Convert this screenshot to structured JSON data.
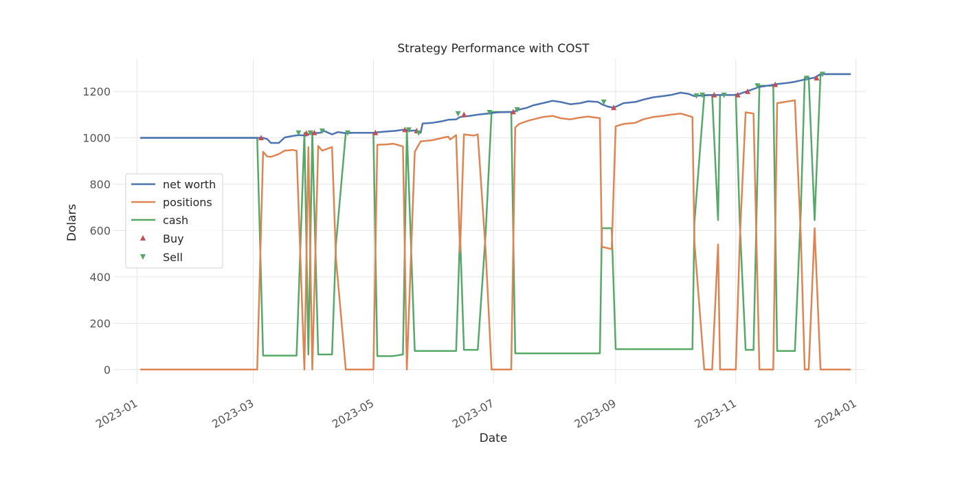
{
  "chart_data": {
    "type": "line",
    "title": "Strategy Performance with COST",
    "xlabel": "Date",
    "ylabel": "Dolars",
    "xlim": [
      "2022-12-20",
      "2024-01-06"
    ],
    "ylim": [
      -60,
      1340
    ],
    "x_ticks": [
      "2023-01-01",
      "2023-03-01",
      "2023-05-01",
      "2023-07-01",
      "2023-09-01",
      "2023-11-01",
      "2024-01-01"
    ],
    "x_tick_labels": [
      "2023-01",
      "2023-03",
      "2023-05",
      "2023-07",
      "2023-09",
      "2023-11",
      "2024-01"
    ],
    "y_ticks": [
      0,
      200,
      400,
      600,
      800,
      1000,
      1200
    ],
    "y_tick_labels": [
      "0",
      "200",
      "400",
      "600",
      "800",
      "1000",
      "1200"
    ],
    "grid": true,
    "legend_position": "center-left",
    "colors": {
      "net_worth": "#4c72b0",
      "positions": "#dd8452",
      "cash": "#55a868",
      "buy": "#c44e52",
      "sell": "#55a868",
      "grid": "#e5e5e5",
      "text": "#262626",
      "tick_text": "#555555"
    },
    "series": [
      {
        "name": "net worth",
        "points": [
          [
            "2023-01-03",
            1000
          ],
          [
            "2023-03-03",
            1000
          ],
          [
            "2023-03-06",
            1000
          ],
          [
            "2023-03-08",
            995
          ],
          [
            "2023-03-10",
            978
          ],
          [
            "2023-03-14",
            978
          ],
          [
            "2023-03-17",
            1002
          ],
          [
            "2023-03-21",
            1008
          ],
          [
            "2023-03-24",
            1012
          ],
          [
            "2023-03-28",
            1010
          ],
          [
            "2023-03-30",
            1020
          ],
          [
            "2023-04-04",
            1022
          ],
          [
            "2023-04-06",
            1030
          ],
          [
            "2023-04-10",
            1015
          ],
          [
            "2023-04-13",
            1025
          ],
          [
            "2023-04-17",
            1020
          ],
          [
            "2023-04-21",
            1022
          ],
          [
            "2023-05-01",
            1022
          ],
          [
            "2023-05-04",
            1025
          ],
          [
            "2023-05-08",
            1028
          ],
          [
            "2023-05-12",
            1030
          ],
          [
            "2023-05-16",
            1035
          ],
          [
            "2023-05-19",
            1030
          ],
          [
            "2023-05-23",
            1032
          ],
          [
            "2023-05-25",
            1022
          ],
          [
            "2023-05-26",
            1062
          ],
          [
            "2023-05-31",
            1065
          ],
          [
            "2023-06-05",
            1072
          ],
          [
            "2023-06-08",
            1078
          ],
          [
            "2023-06-12",
            1080
          ],
          [
            "2023-06-14",
            1090
          ],
          [
            "2023-06-19",
            1095
          ],
          [
            "2023-06-23",
            1100
          ],
          [
            "2023-06-28",
            1105
          ],
          [
            "2023-07-03",
            1110
          ],
          [
            "2023-07-11",
            1112
          ],
          [
            "2023-07-14",
            1122
          ],
          [
            "2023-07-18",
            1130
          ],
          [
            "2023-07-21",
            1140
          ],
          [
            "2023-07-26",
            1150
          ],
          [
            "2023-07-31",
            1160
          ],
          [
            "2023-08-04",
            1155
          ],
          [
            "2023-08-09",
            1145
          ],
          [
            "2023-08-14",
            1150
          ],
          [
            "2023-08-18",
            1158
          ],
          [
            "2023-08-23",
            1155
          ],
          [
            "2023-08-25",
            1145
          ],
          [
            "2023-08-28",
            1135
          ],
          [
            "2023-08-31",
            1130
          ],
          [
            "2023-09-05",
            1150
          ],
          [
            "2023-09-11",
            1155
          ],
          [
            "2023-09-15",
            1165
          ],
          [
            "2023-09-20",
            1175
          ],
          [
            "2023-09-25",
            1180
          ],
          [
            "2023-09-29",
            1185
          ],
          [
            "2023-10-04",
            1195
          ],
          [
            "2023-10-08",
            1190
          ],
          [
            "2023-10-11",
            1180
          ],
          [
            "2023-10-13",
            1182
          ],
          [
            "2023-10-20",
            1185
          ],
          [
            "2023-10-31",
            1185
          ],
          [
            "2023-11-03",
            1190
          ],
          [
            "2023-11-08",
            1205
          ],
          [
            "2023-11-13",
            1220
          ],
          [
            "2023-11-17",
            1225
          ],
          [
            "2023-11-22",
            1232
          ],
          [
            "2023-11-28",
            1238
          ],
          [
            "2023-12-01",
            1242
          ],
          [
            "2023-12-06",
            1252
          ],
          [
            "2023-12-11",
            1260
          ],
          [
            "2023-12-14",
            1275
          ],
          [
            "2023-12-29",
            1275
          ]
        ]
      },
      {
        "name": "positions",
        "points": [
          [
            "2023-01-03",
            0
          ],
          [
            "2023-03-03",
            0
          ],
          [
            "2023-03-06",
            940
          ],
          [
            "2023-03-08",
            920
          ],
          [
            "2023-03-10",
            918
          ],
          [
            "2023-03-14",
            930
          ],
          [
            "2023-03-17",
            945
          ],
          [
            "2023-03-21",
            948
          ],
          [
            "2023-03-23",
            945
          ],
          [
            "2023-03-27",
            0
          ],
          [
            "2023-03-29",
            960
          ],
          [
            "2023-03-31",
            0
          ],
          [
            "2023-04-03",
            965
          ],
          [
            "2023-04-05",
            945
          ],
          [
            "2023-04-10",
            960
          ],
          [
            "2023-04-12",
            480
          ],
          [
            "2023-04-17",
            0
          ],
          [
            "2023-05-01",
            0
          ],
          [
            "2023-05-03",
            970
          ],
          [
            "2023-05-08",
            972
          ],
          [
            "2023-05-11",
            975
          ],
          [
            "2023-05-16",
            963
          ],
          [
            "2023-05-18",
            0
          ],
          [
            "2023-05-22",
            940
          ],
          [
            "2023-05-25",
            985
          ],
          [
            "2023-05-31",
            990
          ],
          [
            "2023-06-05",
            1000
          ],
          [
            "2023-06-08",
            1005
          ],
          [
            "2023-06-09",
            993
          ],
          [
            "2023-06-12",
            1012
          ],
          [
            "2023-06-14",
            508
          ],
          [
            "2023-06-16",
            1015
          ],
          [
            "2023-06-21",
            1010
          ],
          [
            "2023-06-23",
            1015
          ],
          [
            "2023-06-27",
            510
          ],
          [
            "2023-06-30",
            0
          ],
          [
            "2023-07-10",
            0
          ],
          [
            "2023-07-12",
            1045
          ],
          [
            "2023-07-14",
            1060
          ],
          [
            "2023-07-19",
            1075
          ],
          [
            "2023-07-26",
            1090
          ],
          [
            "2023-07-31",
            1095
          ],
          [
            "2023-08-04",
            1085
          ],
          [
            "2023-08-09",
            1080
          ],
          [
            "2023-08-14",
            1088
          ],
          [
            "2023-08-18",
            1092
          ],
          [
            "2023-08-24",
            1085
          ],
          [
            "2023-08-25",
            530
          ],
          [
            "2023-08-30",
            520
          ],
          [
            "2023-09-01",
            1050
          ],
          [
            "2023-09-05",
            1060
          ],
          [
            "2023-09-11",
            1065
          ],
          [
            "2023-09-15",
            1080
          ],
          [
            "2023-09-20",
            1090
          ],
          [
            "2023-09-25",
            1095
          ],
          [
            "2023-09-29",
            1100
          ],
          [
            "2023-10-04",
            1105
          ],
          [
            "2023-10-10",
            1090
          ],
          [
            "2023-10-11",
            550
          ],
          [
            "2023-10-16",
            0
          ],
          [
            "2023-10-20",
            0
          ],
          [
            "2023-10-23",
            540
          ],
          [
            "2023-10-24",
            0
          ],
          [
            "2023-11-01",
            0
          ],
          [
            "2023-11-03",
            550
          ],
          [
            "2023-11-06",
            1110
          ],
          [
            "2023-11-10",
            1105
          ],
          [
            "2023-11-13",
            0
          ],
          [
            "2023-11-20",
            0
          ],
          [
            "2023-11-22",
            1150
          ],
          [
            "2023-11-28",
            1158
          ],
          [
            "2023-12-01",
            1162
          ],
          [
            "2023-12-04",
            580
          ],
          [
            "2023-12-06",
            0
          ],
          [
            "2023-12-08",
            0
          ],
          [
            "2023-12-11",
            610
          ],
          [
            "2023-12-14",
            0
          ],
          [
            "2023-12-29",
            0
          ]
        ]
      },
      {
        "name": "cash",
        "points": [
          [
            "2023-01-03",
            1000
          ],
          [
            "2023-03-03",
            1000
          ],
          [
            "2023-03-06",
            60
          ],
          [
            "2023-03-23",
            60
          ],
          [
            "2023-03-27",
            1022
          ],
          [
            "2023-03-29",
            65
          ],
          [
            "2023-03-31",
            1022
          ],
          [
            "2023-04-03",
            65
          ],
          [
            "2023-04-10",
            65
          ],
          [
            "2023-04-12",
            540
          ],
          [
            "2023-04-17",
            1022
          ],
          [
            "2023-05-01",
            1022
          ],
          [
            "2023-05-03",
            58
          ],
          [
            "2023-05-11",
            58
          ],
          [
            "2023-05-16",
            65
          ],
          [
            "2023-05-18",
            1035
          ],
          [
            "2023-05-22",
            80
          ],
          [
            "2023-06-12",
            80
          ],
          [
            "2023-06-14",
            590
          ],
          [
            "2023-06-16",
            85
          ],
          [
            "2023-06-23",
            85
          ],
          [
            "2023-06-27",
            590
          ],
          [
            "2023-06-30",
            1112
          ],
          [
            "2023-07-10",
            1112
          ],
          [
            "2023-07-12",
            70
          ],
          [
            "2023-08-24",
            70
          ],
          [
            "2023-08-25",
            610
          ],
          [
            "2023-08-30",
            610
          ],
          [
            "2023-09-01",
            88
          ],
          [
            "2023-10-10",
            88
          ],
          [
            "2023-10-11",
            635
          ],
          [
            "2023-10-16",
            1185
          ],
          [
            "2023-10-20",
            1185
          ],
          [
            "2023-10-23",
            645
          ],
          [
            "2023-10-24",
            1185
          ],
          [
            "2023-11-01",
            1185
          ],
          [
            "2023-11-03",
            640
          ],
          [
            "2023-11-06",
            85
          ],
          [
            "2023-11-10",
            85
          ],
          [
            "2023-11-13",
            1225
          ],
          [
            "2023-11-20",
            1225
          ],
          [
            "2023-11-22",
            80
          ],
          [
            "2023-12-01",
            80
          ],
          [
            "2023-12-04",
            680
          ],
          [
            "2023-12-06",
            1260
          ],
          [
            "2023-12-08",
            1260
          ],
          [
            "2023-12-11",
            645
          ],
          [
            "2023-12-14",
            1275
          ],
          [
            "2023-12-29",
            1275
          ]
        ]
      }
    ],
    "buy_signals": [
      [
        "2023-03-05",
        1000
      ],
      [
        "2023-03-28",
        1020
      ],
      [
        "2023-04-01",
        1022
      ],
      [
        "2023-05-02",
        1022
      ],
      [
        "2023-05-17",
        1035
      ],
      [
        "2023-05-23",
        1030
      ],
      [
        "2023-06-16",
        1100
      ],
      [
        "2023-07-11",
        1112
      ],
      [
        "2023-08-31",
        1130
      ],
      [
        "2023-10-21",
        1185
      ],
      [
        "2023-11-02",
        1185
      ],
      [
        "2023-11-07",
        1200
      ],
      [
        "2023-11-21",
        1230
      ],
      [
        "2023-12-12",
        1258
      ]
    ],
    "sell_signals": [
      [
        "2023-03-24",
        1022
      ],
      [
        "2023-03-30",
        1022
      ],
      [
        "2023-04-05",
        1030
      ],
      [
        "2023-04-18",
        1022
      ],
      [
        "2023-05-19",
        1035
      ],
      [
        "2023-05-24",
        1022
      ],
      [
        "2023-06-13",
        1105
      ],
      [
        "2023-06-29",
        1110
      ],
      [
        "2023-07-13",
        1122
      ],
      [
        "2023-08-26",
        1155
      ],
      [
        "2023-10-12",
        1182
      ],
      [
        "2023-10-15",
        1185
      ],
      [
        "2023-10-26",
        1185
      ],
      [
        "2023-11-12",
        1225
      ],
      [
        "2023-12-07",
        1258
      ],
      [
        "2023-12-15",
        1275
      ]
    ],
    "legend": [
      "net worth",
      "positions",
      "cash",
      "Buy",
      "Sell"
    ]
  }
}
